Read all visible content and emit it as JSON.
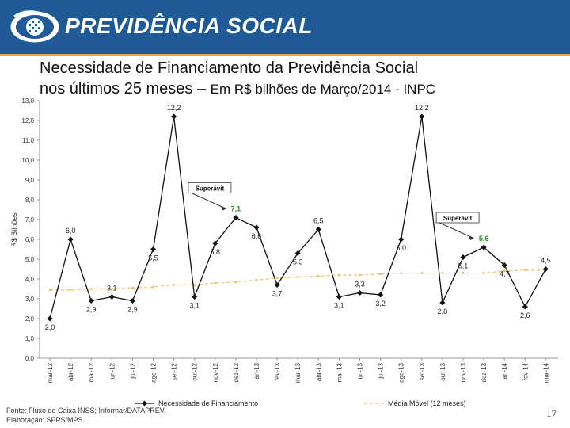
{
  "header": {
    "brand": "PREVIDÊNCIA SOCIAL",
    "title_line1": "Necessidade de Financiamento da Previdência Social",
    "title_line2_main": "nos últimos 25 meses –",
    "title_line2_sub": "Em R$ bilhões de Março/2014 - INPC"
  },
  "footer": {
    "source": "Fonte: Fluxo de Caixa INSS; Informar/DATAPREV.",
    "prepared": "Elaboração: SPPS/MPS."
  },
  "page_number": "17",
  "colors": {
    "banner": "#1f5a96",
    "series_main": "#111111",
    "series_avg": "#e8c46a",
    "surplus_value": "#1e9b1e"
  },
  "chart_data": {
    "type": "line",
    "title": "Necessidade de Financiamento da Previdência Social nos últimos 25 meses – Em R$ bilhões de Março/2014 - INPC",
    "ylabel": "R$ Bilhões",
    "xlabel": "",
    "ylim": [
      0,
      13
    ],
    "yticks": [
      "0,0",
      "1,0",
      "2,0",
      "3,0",
      "4,0",
      "5,0",
      "6,0",
      "7,0",
      "8,0",
      "9,0",
      "10,0",
      "11,0",
      "12,0",
      "13,0"
    ],
    "categories": [
      "mar-12",
      "abr-12",
      "mai-12",
      "jun-12",
      "jul-12",
      "ago-12",
      "set-12",
      "out-12",
      "nov-12",
      "dez-12",
      "jan-13",
      "fev-13",
      "mar-13",
      "abr-13",
      "mai-13",
      "jun-13",
      "jul-13",
      "ago-13",
      "set-13",
      "out-13",
      "nov-13",
      "dez-13",
      "jan-14",
      "fev-14",
      "mar-14"
    ],
    "series": [
      {
        "name": "Necessidade de Financiamento",
        "values": [
          2.0,
          6.0,
          2.9,
          3.1,
          2.9,
          5.5,
          12.2,
          3.1,
          5.8,
          7.1,
          6.6,
          3.7,
          5.3,
          6.5,
          3.1,
          3.3,
          3.2,
          6.0,
          12.2,
          2.8,
          5.1,
          5.6,
          4.7,
          2.6,
          4.5
        ],
        "labels": [
          "2,0",
          "6,0",
          "2,9",
          "3,1",
          "2,9",
          "5,5",
          "12,2",
          "3,1",
          "5,8",
          "7,1",
          "6,6",
          "3,7",
          "5,3",
          "6,5",
          "3,1",
          "3,3",
          "3,2",
          "6,0",
          "12,2",
          "2,8",
          "5,1",
          "5,6",
          "4,7",
          "2,6",
          "4,5"
        ]
      },
      {
        "name": "Média Móvel (12 meses)",
        "values": [
          3.45,
          3.45,
          3.5,
          3.5,
          3.55,
          3.6,
          3.7,
          3.7,
          3.8,
          3.85,
          3.95,
          4.05,
          4.1,
          4.15,
          4.2,
          4.2,
          4.25,
          4.3,
          4.3,
          4.3,
          4.3,
          4.3,
          4.4,
          4.45,
          4.45
        ]
      }
    ],
    "annotations": [
      {
        "text": "Superávit",
        "target_index": 9
      },
      {
        "text": "Superávit",
        "target_index": 21
      }
    ],
    "legend": [
      "Necessidade de Financiamento",
      "Média Móvel (12 meses)"
    ],
    "legend_position": "bottom"
  }
}
